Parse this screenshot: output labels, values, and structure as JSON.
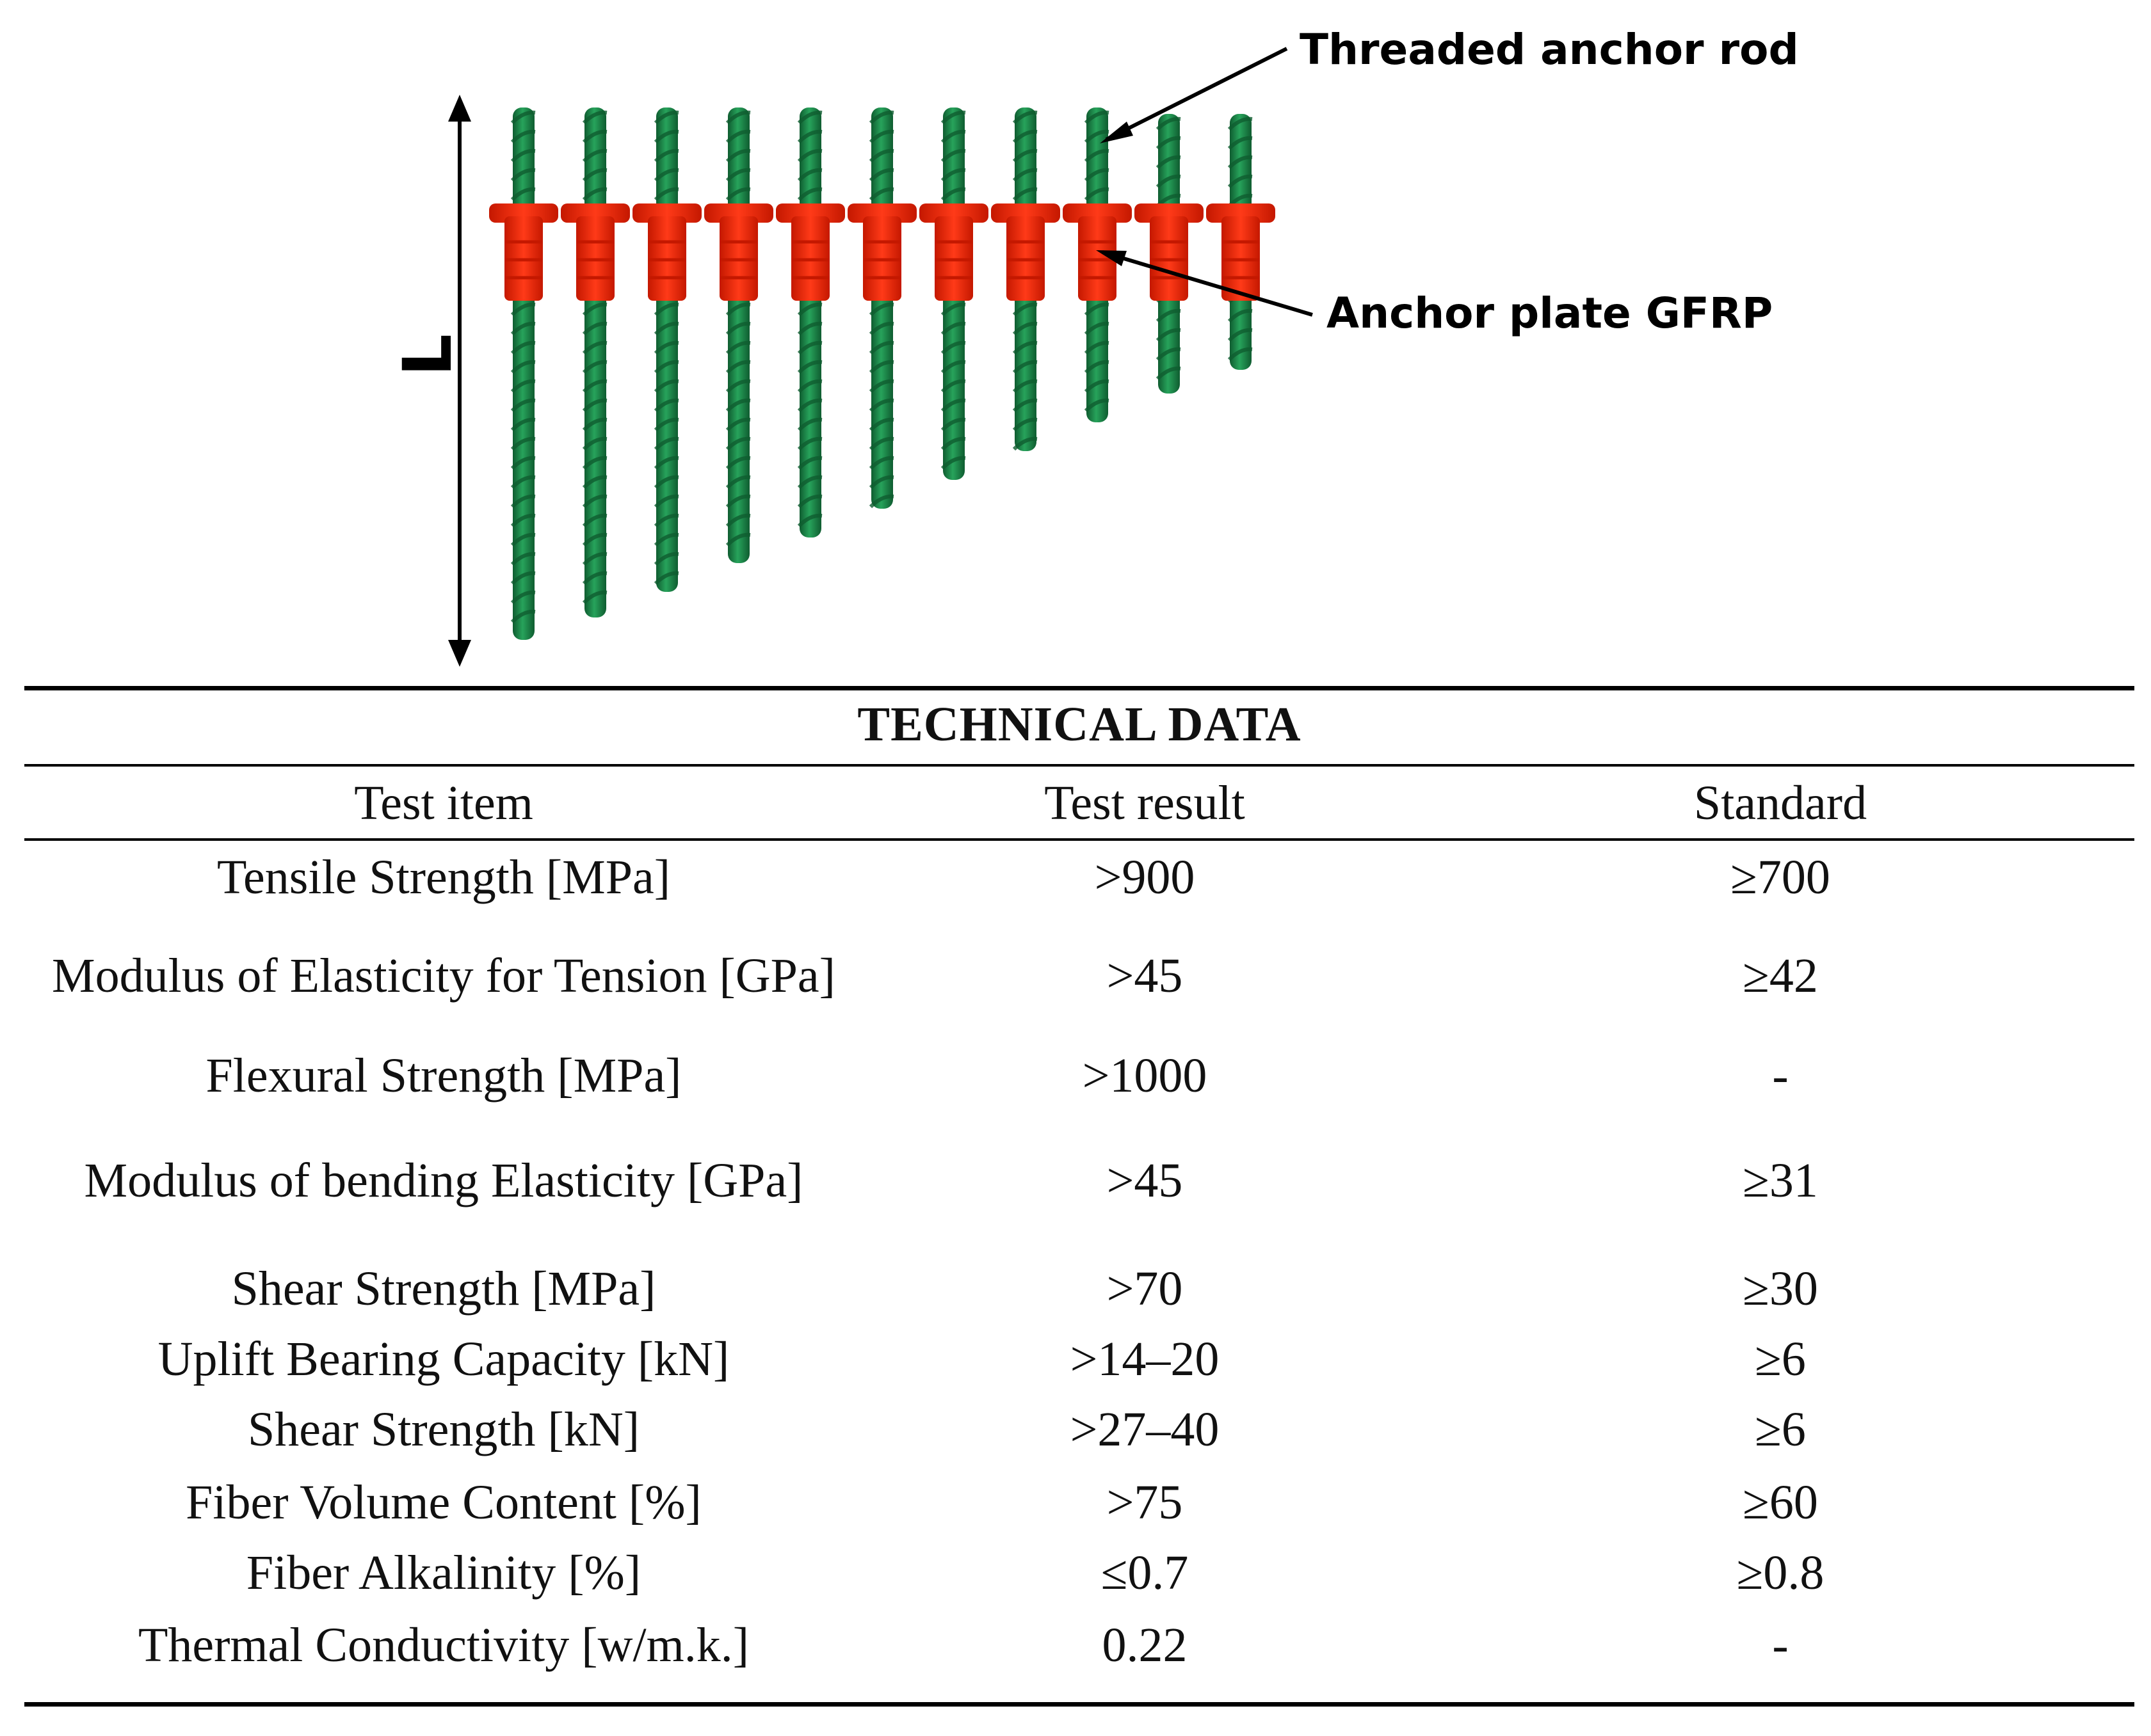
{
  "figure": {
    "callouts": {
      "rod_label": "Threaded anchor rod",
      "plate_label": "Anchor plate GFRP"
    },
    "dimension_label": "L",
    "colors": {
      "rod": "#1f8a4c",
      "rod_dark": "#0f5c30",
      "plate": "#ff2a10",
      "plate_dark": "#c41800"
    }
  },
  "table": {
    "title": "TECHNICAL DATA",
    "headers": [
      "Test item",
      "Test result",
      "Standard"
    ],
    "rows": [
      {
        "item": "Tensile Strength [MPa]",
        "result": ">900",
        "standard": "≥700"
      },
      {
        "item": "Modulus of Elasticity for Tension [GPa]",
        "result": ">45",
        "standard": "≥42"
      },
      {
        "item": "Flexural Strength [MPa]",
        "result": ">1000",
        "standard": "-"
      },
      {
        "item": "Modulus of bending Elasticity [GPa]",
        "result": ">45",
        "standard": "≥31"
      },
      {
        "item": "Shear Strength [MPa]",
        "result": ">70",
        "standard": "≥30"
      },
      {
        "item": "Uplift Bearing Capacity [kN]",
        "result": ">14–20",
        "standard": "≥6"
      },
      {
        "item": "Shear Strength [kN]",
        "result": ">27–40",
        "standard": "≥6"
      },
      {
        "item": "Fiber Volume Content [%]",
        "result": ">75",
        "standard": "≥60"
      },
      {
        "item": "Fiber Alkalinity [%]",
        "result": "≤0.7",
        "standard": "≥0.8"
      },
      {
        "item": "Thermal Conductivity [w/m.k.]",
        "result": "0.22",
        "standard": "-"
      }
    ]
  }
}
